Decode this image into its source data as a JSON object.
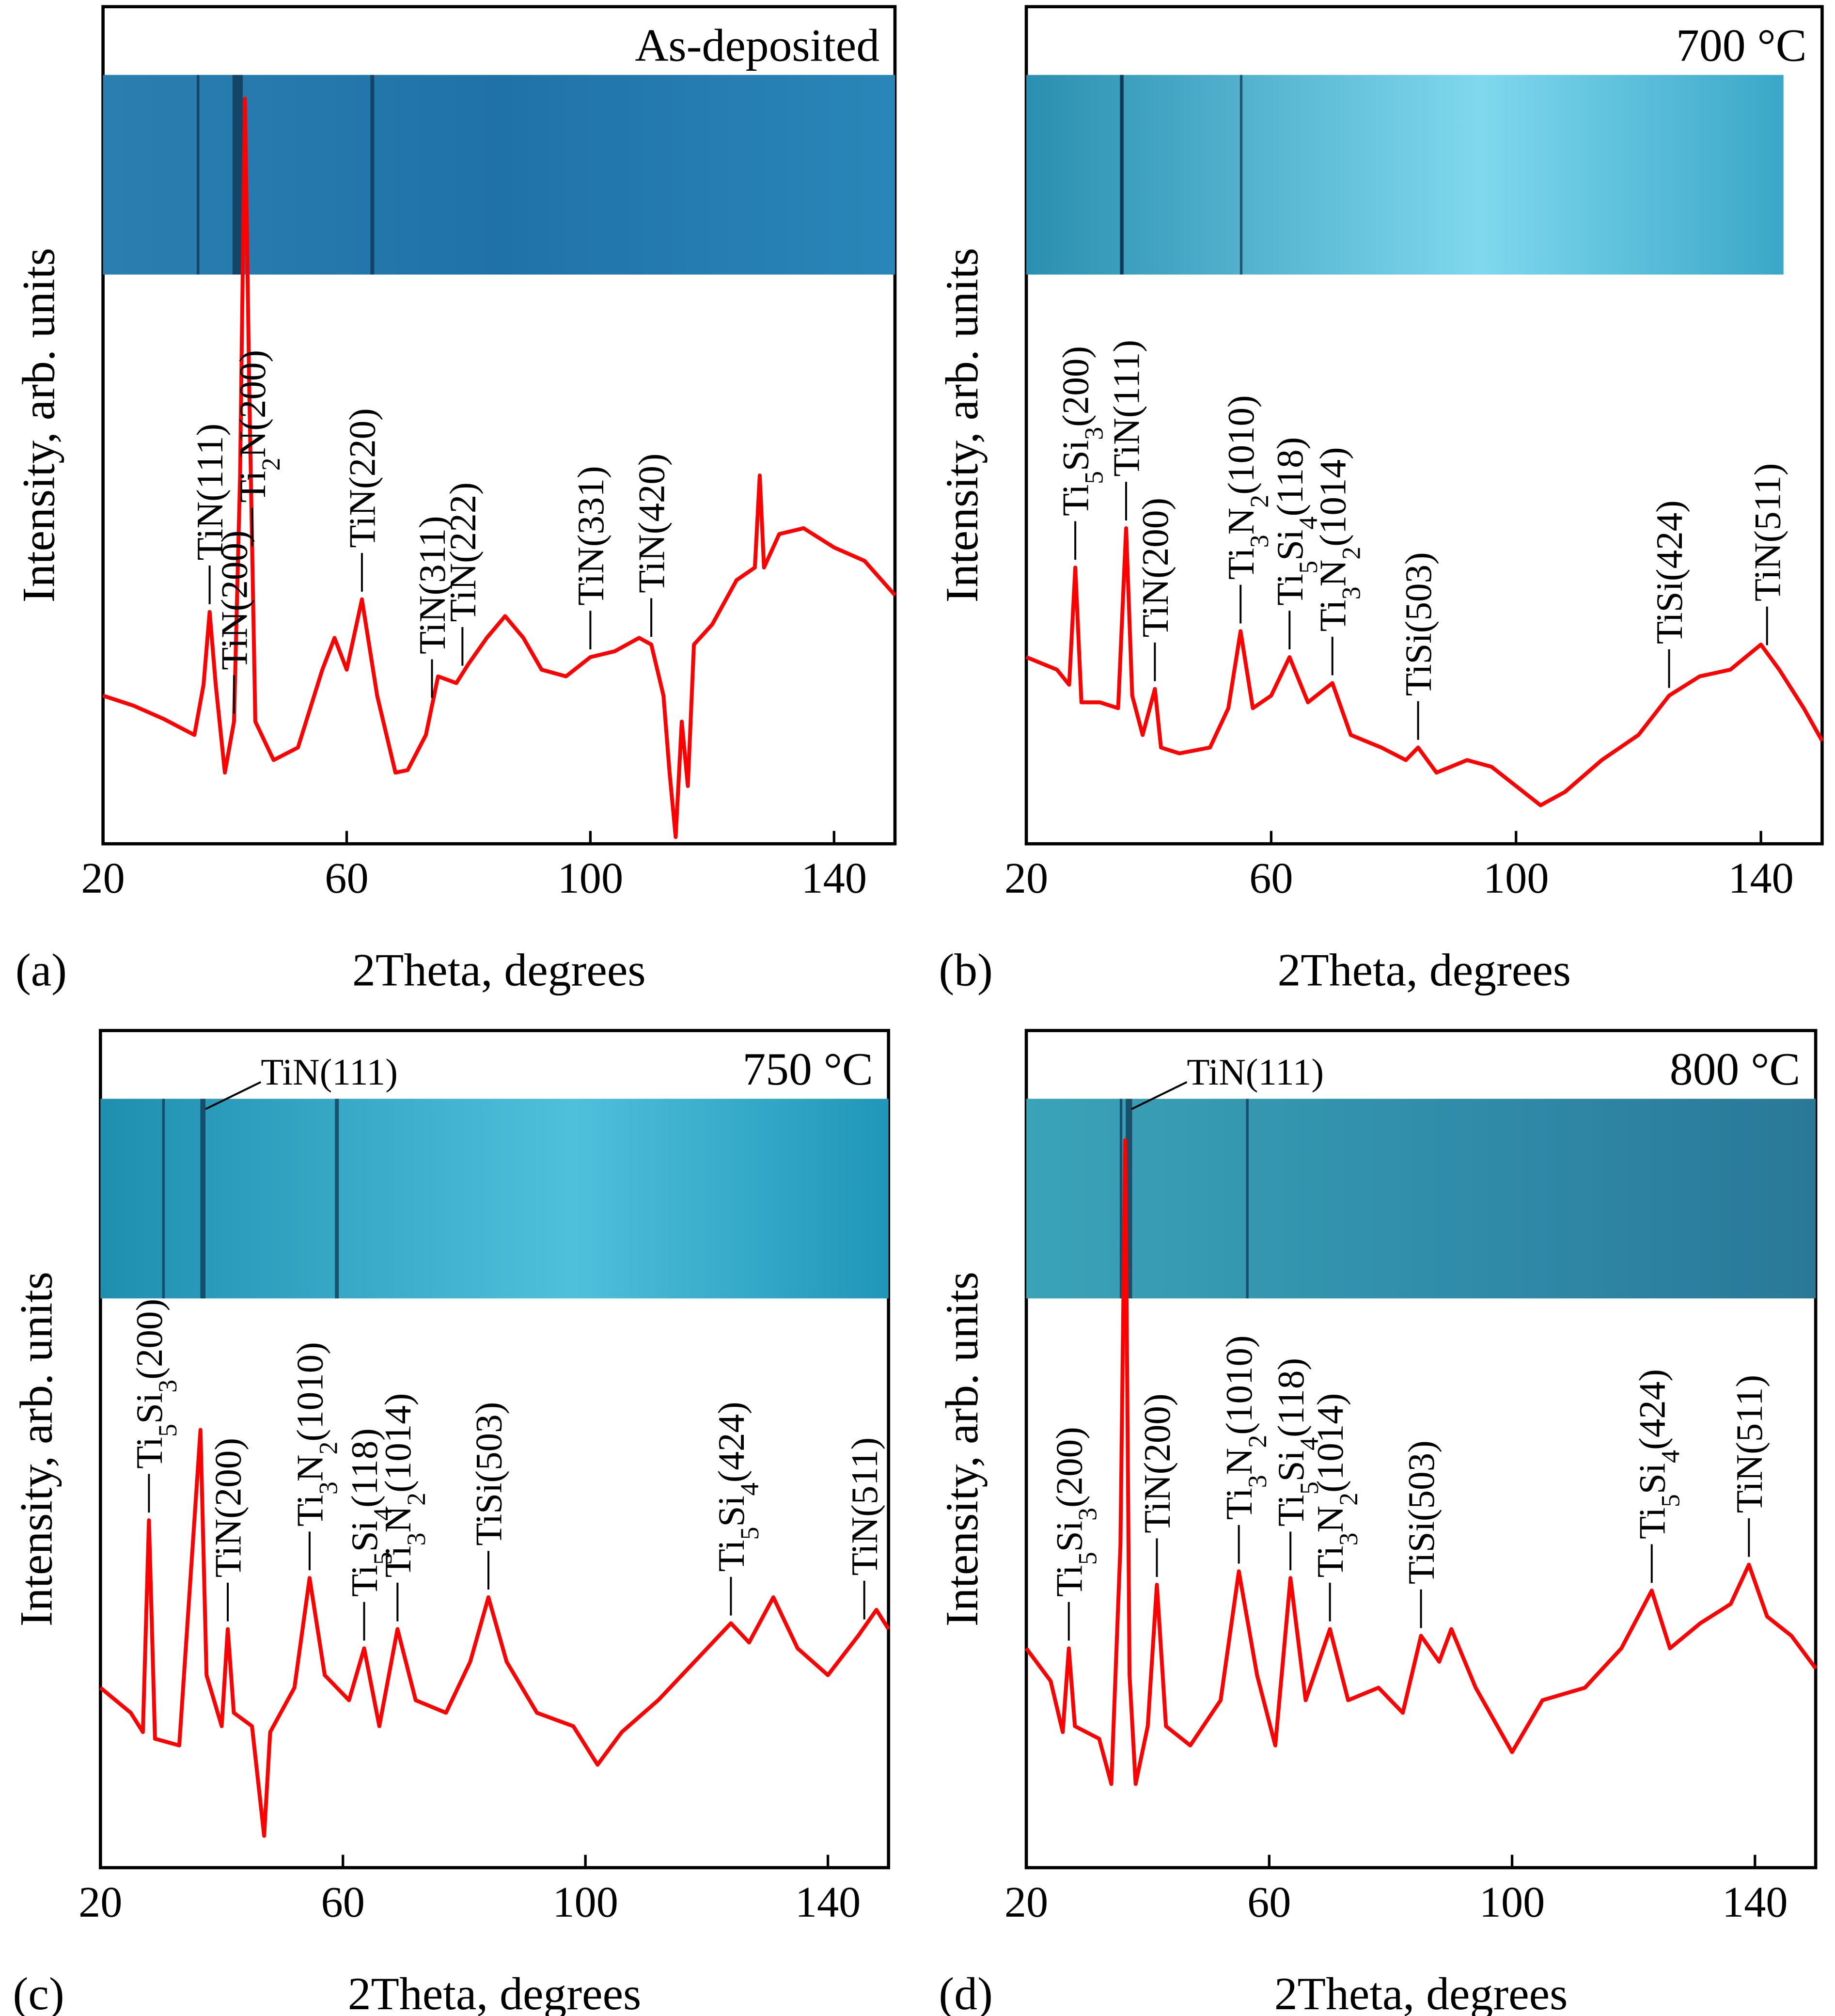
{
  "chart_data": [
    {
      "type": "line",
      "panel_label": "(a)",
      "title": "As-deposited",
      "x_label": "2Theta, degrees",
      "y_label": "Intensity, arb. units",
      "xlim": [
        20,
        150
      ],
      "xticks": [
        20,
        60,
        100,
        140
      ],
      "ylim": [
        0,
        100
      ],
      "x": [
        20,
        25,
        30,
        35,
        36.5,
        37.5,
        38.5,
        40,
        41.5,
        42.5,
        43.3,
        44,
        45,
        48,
        52,
        56,
        58,
        60,
        62.5,
        65,
        68,
        70,
        73,
        75,
        78,
        80,
        83,
        86,
        89,
        92,
        96,
        100,
        104,
        108,
        110,
        112,
        113,
        114,
        115,
        116,
        117,
        120,
        124,
        127,
        127.8,
        128.5,
        131,
        135,
        140,
        145,
        150
      ],
      "series": [
        {
          "color": "#ff0000",
          "values": [
            17.7,
            16.5,
            14.9,
            13,
            19,
            27.7,
            19,
            8.5,
            14.6,
            44,
            89,
            54.6,
            14.6,
            10,
            11.5,
            20.8,
            24.6,
            20.8,
            29.2,
            17.7,
            8.5,
            8.8,
            13,
            20,
            19.2,
            21.5,
            24.6,
            27.2,
            24.6,
            20.8,
            20,
            22.3,
            23,
            24.6,
            23.8,
            17.7,
            8.5,
            0.8,
            14.6,
            6.9,
            23.8,
            26.2,
            31.5,
            33,
            44,
            33,
            37,
            37.7,
            35.4,
            33.8,
            29.7
          ]
        }
      ],
      "annotations": [
        {
          "text": "TiN(111)",
          "x": 37.5
        },
        {
          "text": "TiN(200)",
          "x": 41.5
        },
        {
          "text": "Ti2N(200)",
          "x": 44.5
        },
        {
          "text": "TiN(220)",
          "x": 62.5
        },
        {
          "text": "TiN(311)",
          "x": 74
        },
        {
          "text": "TiN(222)",
          "x": 79
        },
        {
          "text": "TiN(331)",
          "x": 100
        },
        {
          "text": "TiN(420)",
          "x": 110
        }
      ]
    },
    {
      "type": "line",
      "panel_label": "(b)",
      "title": "700 °C",
      "x_label": "2Theta, degrees",
      "y_label": "Intensity, arb. units",
      "xlim": [
        20,
        150
      ],
      "xticks": [
        20,
        60,
        100,
        140
      ],
      "ylim": [
        0,
        100
      ],
      "x": [
        20,
        25,
        27,
        28,
        29,
        32,
        35,
        36.3,
        37.3,
        39,
        41,
        42,
        45,
        50,
        53,
        55,
        57,
        60,
        63,
        66,
        70,
        73,
        78,
        82,
        84,
        87,
        92,
        96,
        100,
        104,
        108,
        114,
        120,
        125,
        130,
        135,
        140,
        143,
        147,
        150
      ],
      "series": [
        {
          "color": "#ff0000",
          "values": [
            22.3,
            20.8,
            19,
            33,
            16.9,
            16.9,
            16.2,
            37.7,
            17.7,
            13,
            18.5,
            11.5,
            10.8,
            11.5,
            16.2,
            25.4,
            16.2,
            17.7,
            22.3,
            16.9,
            19.2,
            13,
            11.5,
            10,
            11.5,
            8.5,
            10,
            9.2,
            6.9,
            4.6,
            6.2,
            10,
            13,
            17.7,
            20,
            20.8,
            23.8,
            20.8,
            16.2,
            12.3
          ]
        }
      ],
      "annotations": [
        {
          "text": "Ti5Si3(200)",
          "x": 28
        },
        {
          "text": "TiN(111)",
          "x": 36.3
        },
        {
          "text": "TiN(200)",
          "x": 41
        },
        {
          "text": "Ti3N2(1010)",
          "x": 55
        },
        {
          "text": "Ti5Si4(118)",
          "x": 63
        },
        {
          "text": "Ti3N2(1014)",
          "x": 70
        },
        {
          "text": "TiSi(503)",
          "x": 84
        },
        {
          "text": "TiSi(424)",
          "x": 125
        },
        {
          "text": "TiN(511)",
          "x": 141
        }
      ]
    },
    {
      "type": "line",
      "panel_label": "(c)",
      "title": "750 °C",
      "x_label": "2Theta, degrees",
      "y_label": "Intensity, arb. units",
      "xlim": [
        20,
        150
      ],
      "xticks": [
        20,
        60,
        100,
        140
      ],
      "ylim": [
        0,
        100
      ],
      "x": [
        20,
        25,
        27,
        28,
        29,
        33,
        36.5,
        37.5,
        40,
        41,
        42,
        45,
        47,
        48,
        52,
        54.5,
        57,
        61,
        63.5,
        66,
        69,
        72,
        77,
        81,
        84,
        87,
        92,
        98,
        102,
        106,
        112,
        118,
        124,
        127,
        131,
        135,
        140,
        145,
        148,
        150
      ],
      "series": [
        {
          "color": "#ff0000",
          "values": [
            21.5,
            18.5,
            16.2,
            41.5,
            15.4,
            14.6,
            52.3,
            23,
            16.9,
            28.5,
            18.5,
            16.9,
            3.8,
            16.2,
            21.5,
            34.6,
            23,
            20,
            26.2,
            16.9,
            28.5,
            20,
            18.5,
            24.6,
            32.3,
            24.6,
            18.5,
            16.9,
            12.3,
            16.2,
            20,
            24.6,
            29.2,
            26.9,
            32.3,
            26.2,
            23,
            27.7,
            30.8,
            28.5
          ]
        }
      ],
      "annotations": [
        {
          "text": "Ti5Si3(200)",
          "x": 28
        },
        {
          "text": "TiN(200)",
          "x": 41
        },
        {
          "text": "Ti3N2(1010)",
          "x": 54.5
        },
        {
          "text": "Ti5Si4(118)",
          "x": 63.5
        },
        {
          "text": "Ti3N2(1014)",
          "x": 69
        },
        {
          "text": "TiSi(503)",
          "x": 84
        },
        {
          "text": "Ti5Si4(424)",
          "x": 124
        },
        {
          "text": "TiN(511)",
          "x": 146
        }
      ],
      "photo_annotation": "TiN(111)"
    },
    {
      "type": "line",
      "panel_label": "(d)",
      "title": "800 °C",
      "x_label": "2Theta, degrees",
      "y_label": "Intensity, arb. units",
      "xlim": [
        20,
        150
      ],
      "xticks": [
        20,
        60,
        100,
        140
      ],
      "ylim": [
        0,
        100
      ],
      "x": [
        20,
        24,
        26,
        27,
        28,
        32,
        34,
        35.5,
        36.3,
        37,
        38,
        40,
        41.5,
        43,
        47,
        52,
        55,
        58,
        61,
        63.5,
        66,
        70,
        73,
        78,
        82,
        85,
        88,
        90,
        94,
        100,
        105,
        112,
        118,
        123,
        126,
        131,
        136,
        139,
        142,
        146,
        150
      ],
      "series": [
        {
          "color": "#ff0000",
          "values": [
            26.2,
            22.3,
            16.2,
            26.2,
            16.9,
            15.4,
            10,
            38.5,
            86.9,
            23,
            10,
            16.9,
            33.8,
            16.9,
            14.6,
            20,
            35.4,
            23,
            14.6,
            34.6,
            20,
            28.5,
            20,
            21.5,
            18.5,
            27.7,
            24.6,
            28.5,
            21.5,
            13.8,
            20,
            21.5,
            26.2,
            33.1,
            26.2,
            29.2,
            31.5,
            36.2,
            30,
            27.7,
            23.8
          ]
        }
      ],
      "annotations": [
        {
          "text": "Ti5Si3(200)",
          "x": 27
        },
        {
          "text": "TiN(200)",
          "x": 41.5
        },
        {
          "text": "Ti3N2(1010)",
          "x": 55
        },
        {
          "text": "Ti5Si4(118)",
          "x": 63.5
        },
        {
          "text": "Ti3N2(1014)",
          "x": 70
        },
        {
          "text": "TiSi(503)",
          "x": 85
        },
        {
          "text": "Ti5Si4(424)",
          "x": 123
        },
        {
          "text": "TiN(511)",
          "x": 139
        }
      ],
      "photo_annotation": "TiN(111)"
    }
  ]
}
